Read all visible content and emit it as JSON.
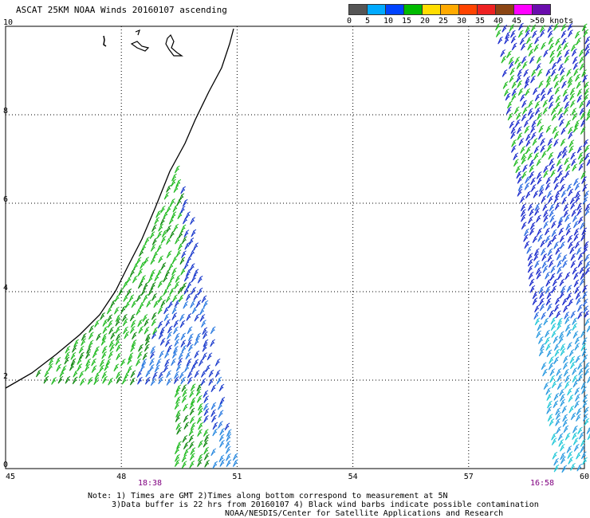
{
  "title": "ASCAT 25KM NOAA Winds 20160107 ascending",
  "colorbar": {
    "labels": [
      "0",
      "5",
      "10",
      "15",
      "20",
      "25",
      "30",
      "35",
      "40",
      "45",
      ">50 knots"
    ],
    "colors": [
      "#555555",
      "#00aaff",
      "#0044ff",
      "#00bb00",
      "#ffdd00",
      "#ffaa00",
      "#ff4400",
      "#ee2222",
      "#8b4513",
      "#ff00ff",
      "#6a0dad"
    ]
  },
  "axes": {
    "x_ticks": [
      "45",
      "48",
      "51",
      "54",
      "57",
      "60"
    ],
    "y_ticks": [
      "0",
      "2",
      "4",
      "6",
      "8",
      "10"
    ]
  },
  "time_labels": [
    "18:38",
    "16:58"
  ],
  "chart_data": {
    "type": "map",
    "xlim": [
      45,
      60
    ],
    "ylim": [
      0,
      10
    ],
    "grid": true,
    "swaths": [
      {
        "time": "18:38",
        "x_range": [
          45.7,
          50.8
        ],
        "y_range": [
          0,
          6.8
        ]
      },
      {
        "time": "16:58",
        "x_range": [
          57.6,
          60
        ],
        "y_range": [
          0,
          10
        ]
      }
    ]
  },
  "note": {
    "line1": "Note: 1) Times are GMT 2)Times along bottom correspond to measurement at 5N",
    "line2": "3)Data buffer is 22 hrs from 20160107 4) Black wind barbs indicate possible contamination",
    "line3": "NOAA/NESDIS/Center for Satellite Applications and Research"
  }
}
